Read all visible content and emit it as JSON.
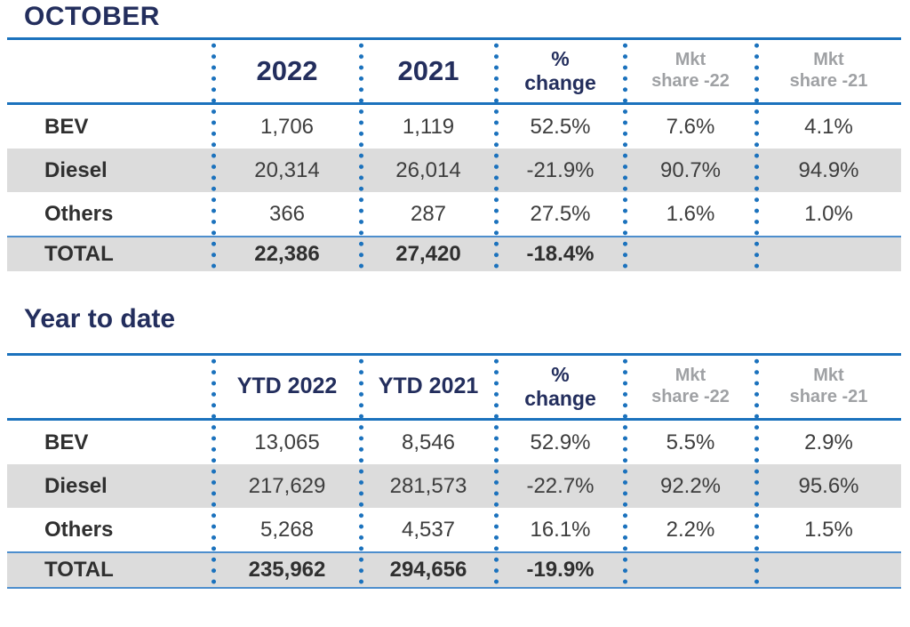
{
  "page": {
    "background": "#ffffff"
  },
  "colors": {
    "navy_text": "#232e5d",
    "line_blue": "#1b72bd",
    "thin_line_blue": "#4d8ecd",
    "row_gray": "#dcdcdc",
    "muted_header_gray": "#9fa1a4",
    "body_text": "#3d3d3d"
  },
  "tables": [
    {
      "title": "OCTOBER",
      "headers": [
        {
          "l1": "2022",
          "l2": ""
        },
        {
          "l1": "2021",
          "l2": ""
        },
        {
          "l1": "%",
          "l2": "change"
        },
        {
          "l1": "Mkt",
          "l2": "share -22"
        },
        {
          "l1": "Mkt",
          "l2": "share -21"
        }
      ],
      "rows": [
        {
          "label": "BEV",
          "values": [
            "1,706",
            "1,119",
            "52.5%",
            "7.6%",
            "4.1%"
          ]
        },
        {
          "label": "Diesel",
          "values": [
            "20,314",
            "26,014",
            "-21.9%",
            "90.7%",
            "94.9%"
          ]
        },
        {
          "label": "Others",
          "values": [
            "366",
            "287",
            "27.5%",
            "1.6%",
            "1.0%"
          ]
        }
      ],
      "total": {
        "label": "TOTAL",
        "values": [
          "22,386",
          "27,420",
          "-18.4%",
          "",
          ""
        ]
      }
    },
    {
      "title": "Year to date",
      "headers": [
        {
          "l1": "YTD 2022",
          "l2": ""
        },
        {
          "l1": "YTD 2021",
          "l2": ""
        },
        {
          "l1": "%",
          "l2": "change"
        },
        {
          "l1": "Mkt",
          "l2": "share -22"
        },
        {
          "l1": "Mkt",
          "l2": "share -21"
        }
      ],
      "rows": [
        {
          "label": "BEV",
          "values": [
            "13,065",
            "8,546",
            "52.9%",
            "5.5%",
            "2.9%"
          ]
        },
        {
          "label": "Diesel",
          "values": [
            "217,629",
            "281,573",
            "-22.7%",
            "92.2%",
            "95.6%"
          ]
        },
        {
          "label": "Others",
          "values": [
            "5,268",
            "4,537",
            "16.1%",
            "2.2%",
            "1.5%"
          ]
        }
      ],
      "total": {
        "label": "TOTAL",
        "values": [
          "235,962",
          "294,656",
          "-19.9%",
          "",
          ""
        ]
      }
    }
  ]
}
